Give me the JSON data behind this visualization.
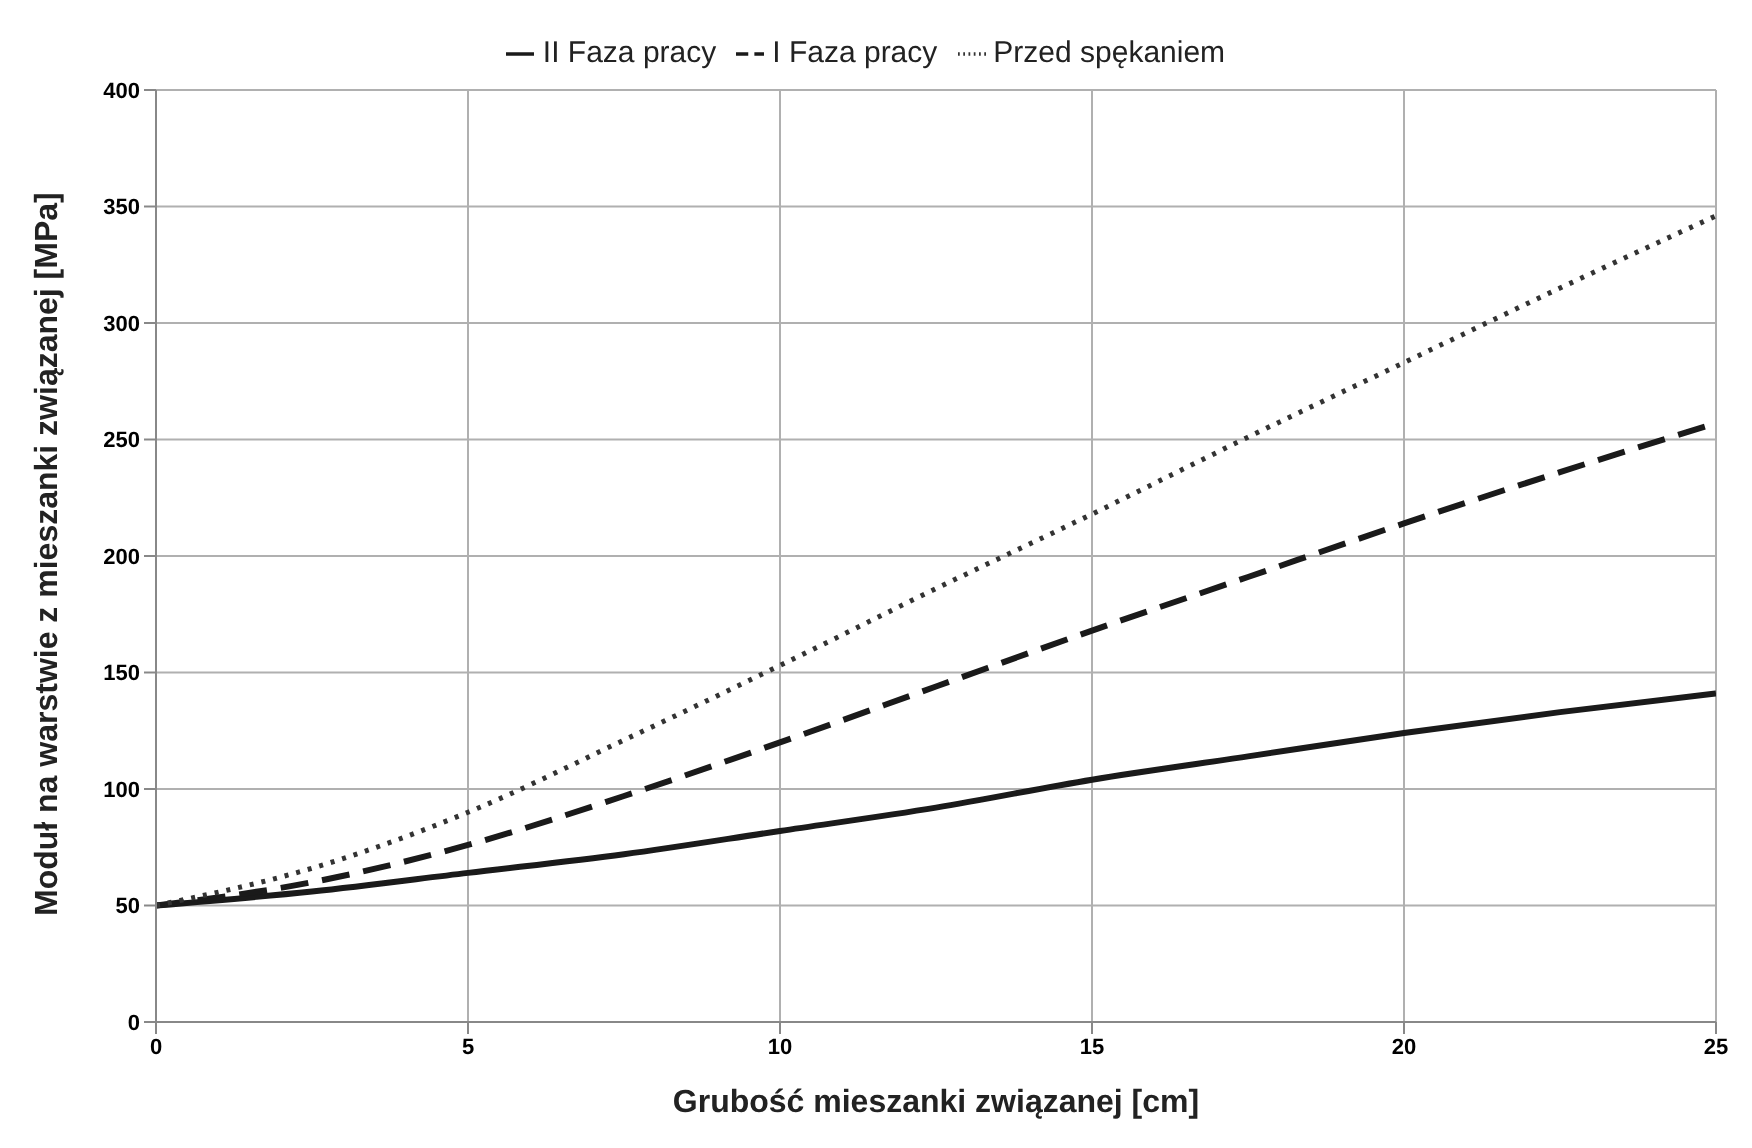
{
  "chart_data": {
    "type": "line",
    "xlabel": "Grubość mieszanki związanej [cm]",
    "ylabel": "Moduł na warstwie z mieszanki związanej [MPa]",
    "x": [
      0,
      2.5,
      5,
      7.5,
      10,
      12.5,
      15,
      17.5,
      20,
      22.5,
      25
    ],
    "series": [
      {
        "name": "II Faza pracy",
        "color": "#1a1a1a",
        "line_style": "solid",
        "values": [
          50,
          56,
          64,
          72,
          82,
          92,
          104,
          114,
          124,
          133,
          141
        ]
      },
      {
        "name": "I Faza pracy",
        "color": "#1a1a1a",
        "line_style": "dashed",
        "values": [
          50,
          60,
          76,
          97,
          120,
          144,
          168,
          191,
          214,
          236,
          257
        ]
      },
      {
        "name": "Przed spękaniem",
        "color": "#333333",
        "line_style": "dotted",
        "values": [
          50,
          66,
          90,
          121,
          153,
          186,
          218,
          251,
          283,
          315,
          346
        ]
      }
    ],
    "xlim": [
      0,
      25
    ],
    "xticks": [
      0,
      5,
      10,
      15,
      20,
      25
    ],
    "ylim": [
      0,
      400
    ],
    "yticks": [
      0,
      50,
      100,
      150,
      200,
      250,
      300,
      350,
      400
    ],
    "grid": true,
    "legend": "top",
    "marker": "none"
  }
}
